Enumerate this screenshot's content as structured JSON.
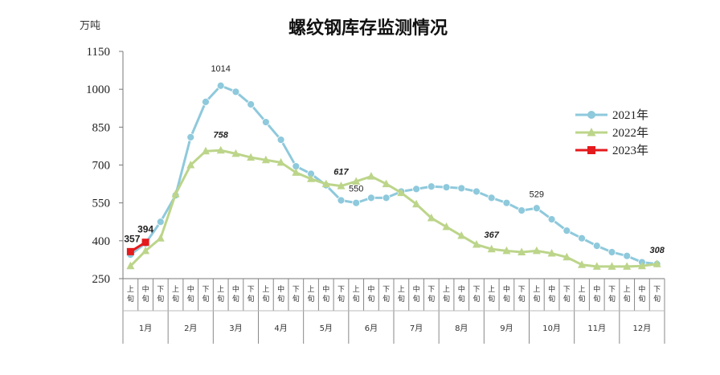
{
  "chart_data": {
    "type": "line",
    "title": "螺纹钢库存监测情况",
    "ylabel": "万吨",
    "ylim": [
      250,
      1150
    ],
    "yticks": [
      250,
      400,
      550,
      700,
      850,
      1000,
      1150
    ],
    "x_sub_labels": [
      "上旬",
      "中旬",
      "下旬"
    ],
    "months": [
      "1月",
      "2月",
      "3月",
      "4月",
      "5月",
      "6月",
      "7月",
      "8月",
      "9月",
      "10月",
      "11月",
      "12月"
    ],
    "grid": false,
    "legend_position": "right",
    "series": [
      {
        "name": "2021年",
        "color": "#8ec9dc",
        "marker": "circle",
        "values": [
          345,
          390,
          475,
          580,
          810,
          950,
          1014,
          990,
          940,
          870,
          800,
          695,
          665,
          620,
          560,
          550,
          570,
          570,
          595,
          605,
          615,
          612,
          608,
          595,
          570,
          550,
          520,
          529,
          485,
          440,
          410,
          380,
          355,
          340,
          315,
          308
        ]
      },
      {
        "name": "2022年",
        "color": "#bcd58a",
        "marker": "triangle",
        "values": [
          300,
          360,
          410,
          585,
          700,
          755,
          758,
          745,
          730,
          720,
          710,
          670,
          645,
          625,
          617,
          635,
          655,
          625,
          590,
          545,
          490,
          455,
          420,
          385,
          367,
          360,
          355,
          360,
          350,
          335,
          305,
          298,
          298,
          298,
          300,
          308
        ]
      },
      {
        "name": "2023年",
        "color": "#e41a1c",
        "marker": "square",
        "values": [
          357,
          394
        ]
      }
    ],
    "annotations": [
      {
        "series": 0,
        "index": 6,
        "text": "1014",
        "style": "normal"
      },
      {
        "series": 0,
        "index": 15,
        "text": "550",
        "style": "normal"
      },
      {
        "series": 0,
        "index": 27,
        "text": "529",
        "style": "normal"
      },
      {
        "series": 1,
        "index": 6,
        "text": "758",
        "style": "italic"
      },
      {
        "series": 1,
        "index": 14,
        "text": "617",
        "style": "italic"
      },
      {
        "series": 1,
        "index": 24,
        "text": "367",
        "style": "italic"
      },
      {
        "series": 1,
        "index": 35,
        "text": "308",
        "style": "italic"
      },
      {
        "series": 2,
        "index": 0,
        "text": "357",
        "style": "bold"
      },
      {
        "series": 2,
        "index": 1,
        "text": "394",
        "style": "bold"
      }
    ]
  }
}
